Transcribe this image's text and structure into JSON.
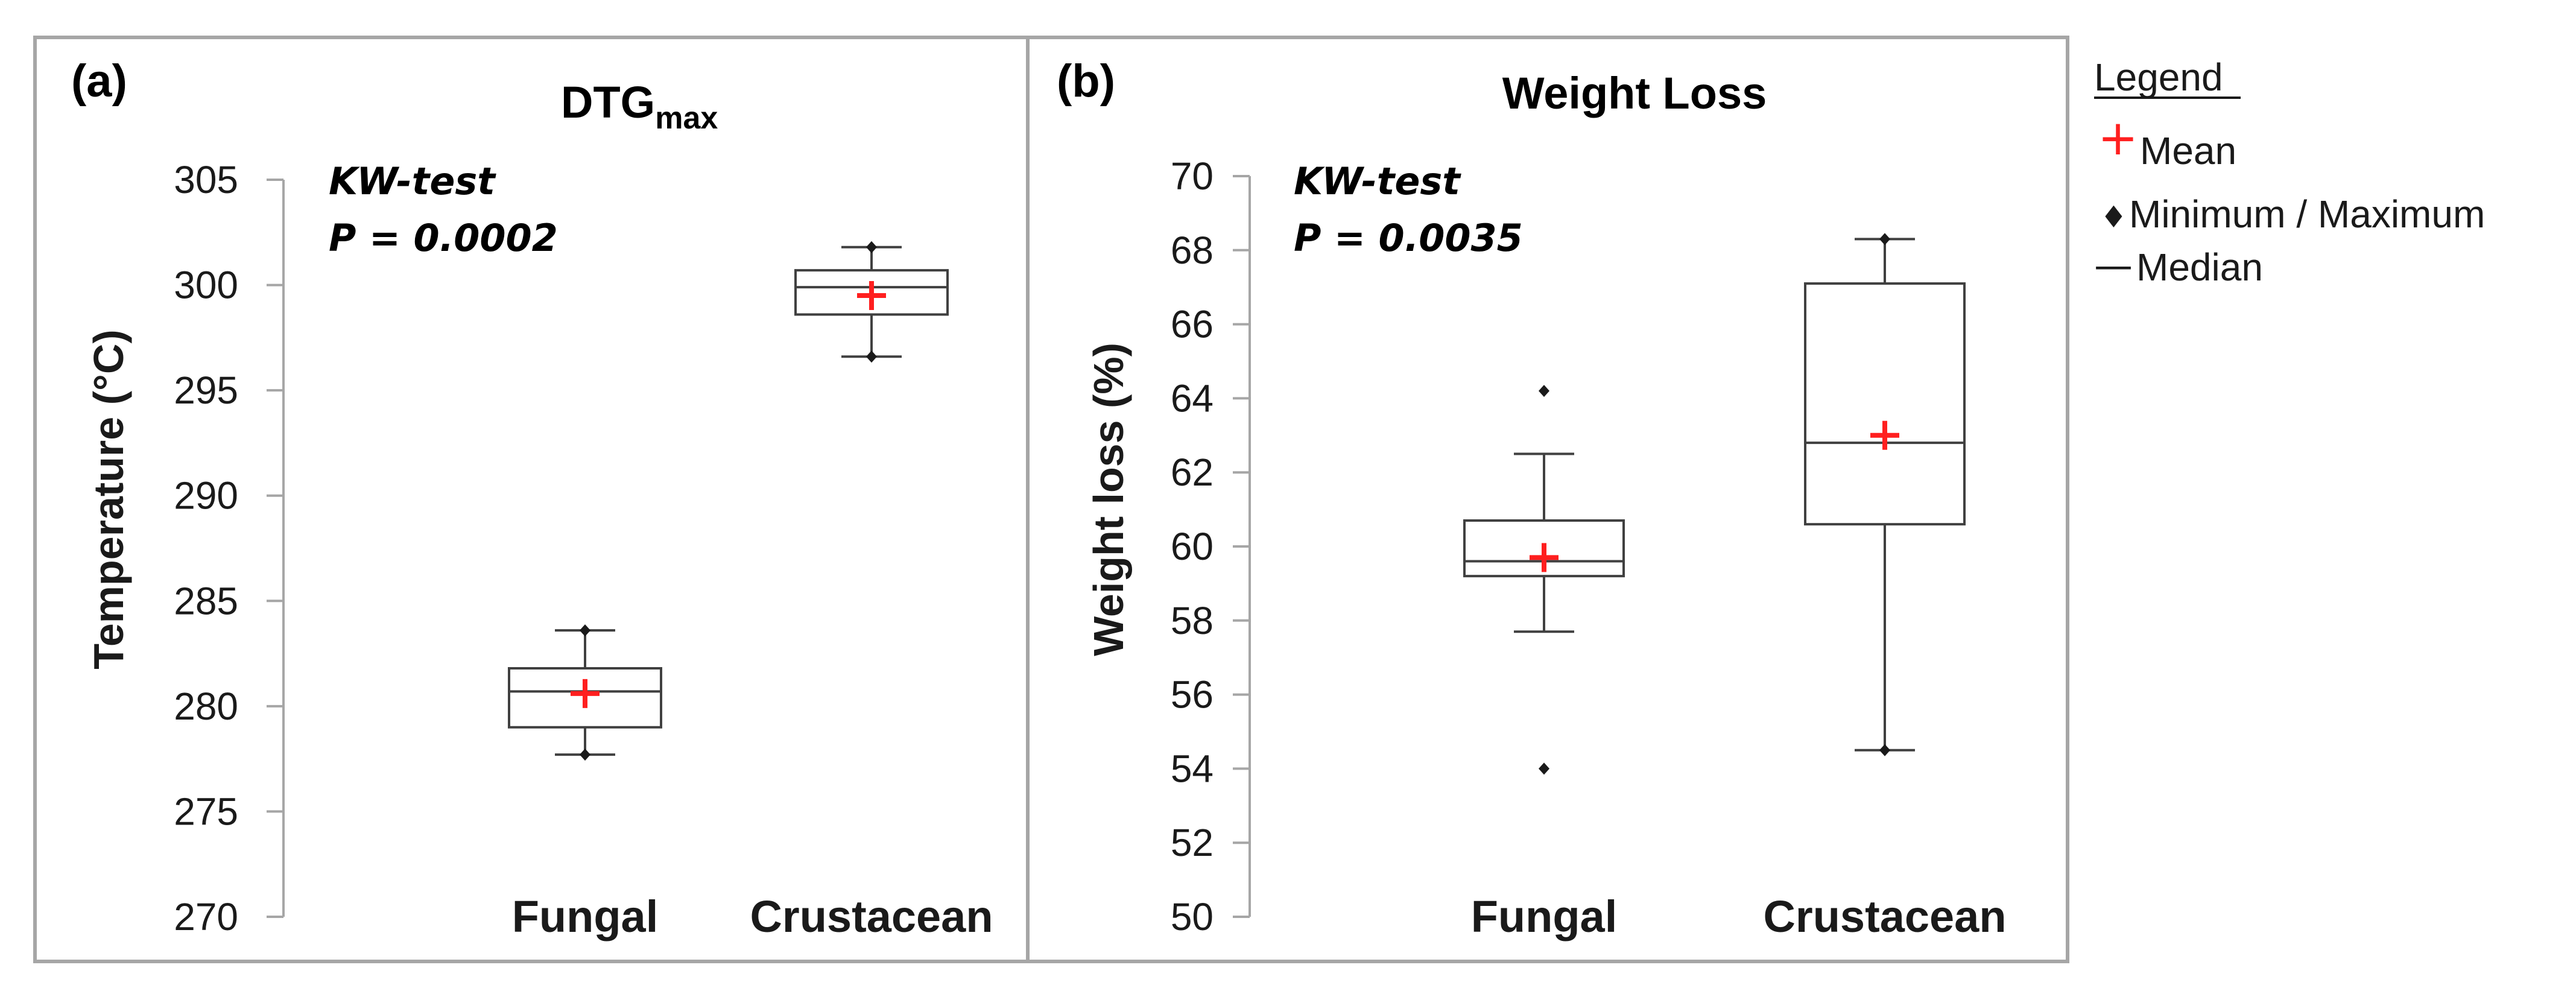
{
  "chart_data": [
    {
      "type": "box",
      "panel_label": "(a)",
      "title": "DTG",
      "title_subscript": "max",
      "ylabel": "Temperature (°C)",
      "xlabel": "",
      "ylim": [
        270,
        305
      ],
      "yticks": [
        270,
        275,
        280,
        285,
        290,
        295,
        300,
        305
      ],
      "annotation": [
        "KW-test",
        "P = 0.0002"
      ],
      "categories": [
        "Fungal",
        "Crustacean"
      ],
      "boxes": [
        {
          "category": "Fungal",
          "min": 277.7,
          "q1": 279.0,
          "median": 280.7,
          "q3": 281.8,
          "max": 283.6,
          "mean": 280.6,
          "whisker_low": 277.7,
          "whisker_high": 283.6
        },
        {
          "category": "Crustacean",
          "min": 296.6,
          "q1": 298.6,
          "median": 299.9,
          "q3": 300.7,
          "max": 301.8,
          "mean": 299.5,
          "whisker_low": 296.6,
          "whisker_high": 301.8
        }
      ]
    },
    {
      "type": "box",
      "panel_label": "(b)",
      "title": "Weight Loss",
      "ylabel": "Weight loss (%)",
      "xlabel": "",
      "ylim": [
        50,
        70
      ],
      "yticks": [
        50,
        52,
        54,
        56,
        58,
        60,
        62,
        64,
        66,
        68,
        70
      ],
      "annotation": [
        "KW-test",
        "P = 0.0035"
      ],
      "categories": [
        "Fungal",
        "Crustacean"
      ],
      "boxes": [
        {
          "category": "Fungal",
          "min": 54.0,
          "q1": 59.2,
          "median": 59.6,
          "q3": 60.7,
          "max": 64.2,
          "mean": 59.7,
          "whisker_low": 57.7,
          "whisker_high": 62.5
        },
        {
          "category": "Crustacean",
          "min": 54.5,
          "q1": 60.6,
          "median": 62.8,
          "q3": 67.1,
          "max": 68.3,
          "mean": 63.0,
          "whisker_low": 54.5,
          "whisker_high": 68.3
        }
      ]
    }
  ],
  "legend": {
    "title": "Legend",
    "items": [
      {
        "symbol": "+",
        "label": "Mean"
      },
      {
        "symbol": "♦",
        "label": "Minimum / Maximum"
      },
      {
        "symbol": "—",
        "label": "Median"
      }
    ]
  },
  "colors": {
    "mean_marker": "#ff1f1f",
    "box_stroke": "#404040",
    "frame": "#a6a6a6",
    "tick": "#a6a6a6",
    "text": "#1a1a1a"
  }
}
